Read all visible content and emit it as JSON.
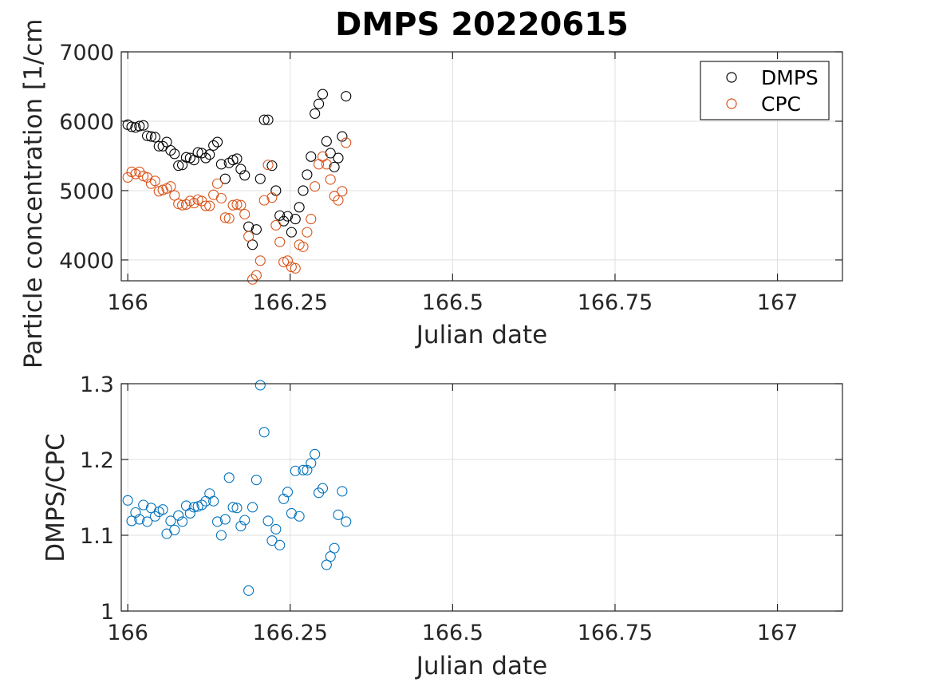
{
  "chart_data": [
    {
      "type": "scatter",
      "title": "DMPS 20220615",
      "xlabel": "Julian date",
      "ylabel": "Particle concentration [1/cm",
      "xlim": [
        165.99,
        167.1
      ],
      "ylim": [
        3700,
        7000
      ],
      "x_ticks": [
        166,
        166.25,
        166.5,
        166.75,
        167
      ],
      "x_tick_labels": [
        "166",
        "166.25",
        "166.5",
        "166.75",
        "167"
      ],
      "y_ticks": [
        4000,
        5000,
        6000,
        7000
      ],
      "y_tick_labels": [
        "4000",
        "5000",
        "6000",
        "7000"
      ],
      "grid": true,
      "legend_position": "top-right",
      "series": [
        {
          "name": "DMPS",
          "color": "#000000",
          "x": [
            166,
            166.006,
            166.012,
            166.018,
            166.024,
            166.03,
            166.036,
            166.042,
            166.048,
            166.054,
            166.06,
            166.066,
            166.072,
            166.078,
            166.084,
            166.09,
            166.096,
            166.102,
            166.108,
            166.114,
            166.12,
            166.126,
            166.132,
            166.138,
            166.144,
            166.15,
            166.156,
            166.162,
            166.168,
            166.174,
            166.18,
            166.186,
            166.192,
            166.198,
            166.204,
            166.21,
            166.216,
            166.222,
            166.228,
            166.234,
            166.24,
            166.246,
            166.252,
            166.258,
            166.264,
            166.27,
            166.276,
            166.282,
            166.288,
            166.294,
            166.3,
            166.306,
            166.312,
            166.318,
            166.324,
            166.33,
            166.336
          ],
          "y": [
            5950,
            5920,
            5910,
            5930,
            5940,
            5790,
            5780,
            5770,
            5640,
            5640,
            5700,
            5580,
            5530,
            5360,
            5370,
            5480,
            5470,
            5440,
            5550,
            5540,
            5470,
            5520,
            5650,
            5700,
            5380,
            5170,
            5400,
            5440,
            5460,
            5310,
            5220,
            4480,
            4220,
            4440,
            5170,
            6020,
            6020,
            5360,
            5000,
            4640,
            4560,
            4630,
            4400,
            4590,
            4760,
            5000,
            5230,
            5490,
            6110,
            6250,
            6390,
            5710,
            5540,
            5340,
            5470,
            5780,
            6360
          ]
        },
        {
          "name": "CPC",
          "color": "#d95319",
          "x": [
            166,
            166.006,
            166.012,
            166.018,
            166.024,
            166.03,
            166.036,
            166.042,
            166.048,
            166.054,
            166.06,
            166.066,
            166.072,
            166.078,
            166.084,
            166.09,
            166.096,
            166.102,
            166.108,
            166.114,
            166.12,
            166.126,
            166.132,
            166.138,
            166.144,
            166.15,
            166.156,
            166.162,
            166.168,
            166.174,
            166.18,
            166.186,
            166.192,
            166.198,
            166.204,
            166.21,
            166.216,
            166.222,
            166.228,
            166.234,
            166.24,
            166.246,
            166.252,
            166.258,
            166.264,
            166.27,
            166.276,
            166.282,
            166.288,
            166.294,
            166.3,
            166.306,
            166.312,
            166.318,
            166.324,
            166.33,
            166.336
          ],
          "y": [
            5190,
            5270,
            5240,
            5270,
            5210,
            5190,
            5100,
            5140,
            4990,
            5010,
            5030,
            5060,
            4930,
            4810,
            4790,
            4800,
            4850,
            4820,
            4870,
            4850,
            4780,
            4780,
            4940,
            5100,
            4890,
            4610,
            4600,
            4790,
            4800,
            4790,
            4660,
            4340,
            3720,
            3780,
            3990,
            4860,
            5370,
            4900,
            4500,
            4260,
            3970,
            3990,
            3900,
            3880,
            4220,
            4190,
            4400,
            4590,
            5060,
            5380,
            5490,
            5380,
            5160,
            4920,
            4860,
            4990,
            5690
          ]
        }
      ]
    },
    {
      "type": "scatter",
      "title": "",
      "xlabel": "Julian date",
      "ylabel": "DMPS/CPC",
      "xlim": [
        165.99,
        167.1
      ],
      "ylim": [
        1,
        1.3
      ],
      "x_ticks": [
        166,
        166.25,
        166.5,
        166.75,
        167
      ],
      "x_tick_labels": [
        "166",
        "166.25",
        "166.5",
        "166.75",
        "167"
      ],
      "y_ticks": [
        1,
        1.1,
        1.2,
        1.3
      ],
      "y_tick_labels": [
        "1",
        "1.1",
        "1.2",
        "1.3"
      ],
      "grid": true,
      "series": [
        {
          "color": "#0072bd",
          "x": [
            166,
            166.006,
            166.012,
            166.018,
            166.024,
            166.03,
            166.036,
            166.042,
            166.048,
            166.054,
            166.06,
            166.066,
            166.072,
            166.078,
            166.084,
            166.09,
            166.096,
            166.102,
            166.108,
            166.114,
            166.12,
            166.126,
            166.132,
            166.138,
            166.144,
            166.15,
            166.156,
            166.162,
            166.168,
            166.174,
            166.18,
            166.186,
            166.192,
            166.198,
            166.204,
            166.21,
            166.216,
            166.222,
            166.228,
            166.234,
            166.24,
            166.246,
            166.252,
            166.258,
            166.264,
            166.27,
            166.276,
            166.282,
            166.288,
            166.294,
            166.3,
            166.306,
            166.312,
            166.318,
            166.324,
            166.33,
            166.336
          ],
          "y": [
            1.146,
            1.119,
            1.13,
            1.121,
            1.14,
            1.118,
            1.136,
            1.125,
            1.131,
            1.134,
            1.102,
            1.119,
            1.107,
            1.126,
            1.118,
            1.139,
            1.129,
            1.137,
            1.138,
            1.14,
            1.145,
            1.155,
            1.145,
            1.118,
            1.1,
            1.121,
            1.176,
            1.137,
            1.136,
            1.112,
            1.12,
            1.027,
            1.137,
            1.173,
            1.298,
            1.236,
            1.119,
            1.093,
            1.108,
            1.087,
            1.148,
            1.157,
            1.129,
            1.185,
            1.125,
            1.186,
            1.186,
            1.195,
            1.207,
            1.156,
            1.162,
            1.061,
            1.072,
            1.083,
            1.127,
            1.158,
            1.118
          ]
        }
      ]
    }
  ]
}
